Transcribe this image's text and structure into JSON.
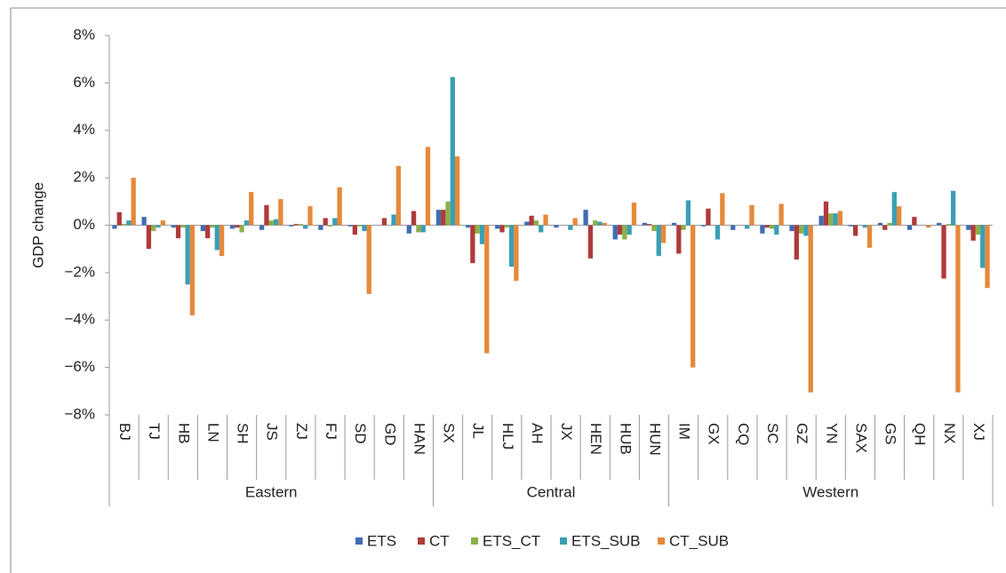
{
  "chart_data": {
    "type": "bar",
    "ylabel": "GDP change",
    "groups": [
      {
        "name": "Eastern",
        "categories": [
          "BJ",
          "TJ",
          "HB",
          "LN",
          "SH",
          "JS",
          "ZJ",
          "FJ",
          "SD",
          "GD",
          "HAN"
        ]
      },
      {
        "name": "Central",
        "categories": [
          "SX",
          "JL",
          "HLJ",
          "AH",
          "JX",
          "HEN",
          "HUB",
          "HUN"
        ]
      },
      {
        "name": "Western",
        "categories": [
          "IM",
          "GX",
          "CQ",
          "SC",
          "GZ",
          "YN",
          "SAX",
          "GS",
          "QH",
          "NX",
          "XJ"
        ]
      }
    ],
    "series": [
      {
        "name": "ETS",
        "color": "#3f6db4",
        "values": [
          -0.15,
          0.35,
          -0.1,
          -0.25,
          -0.15,
          -0.2,
          -0.05,
          -0.2,
          -0.05,
          0.0,
          -0.35,
          0.65,
          -0.1,
          -0.15,
          0.15,
          -0.1,
          0.65,
          -0.6,
          0.1,
          0.1,
          -0.05,
          -0.2,
          -0.35,
          -0.25,
          0.4,
          -0.05,
          0.1,
          -0.2,
          0.1,
          -0.2
        ]
      },
      {
        "name": "CT",
        "color": "#b03a3a",
        "values": [
          0.55,
          -1.0,
          -0.55,
          -0.55,
          -0.1,
          0.85,
          0.05,
          0.3,
          -0.4,
          0.3,
          0.6,
          0.65,
          -1.6,
          -0.3,
          0.4,
          0.0,
          -1.4,
          -0.4,
          0.05,
          -1.2,
          0.7,
          0.0,
          -0.1,
          -1.45,
          1.0,
          -0.45,
          -0.2,
          0.35,
          -2.25,
          -0.65
        ]
      },
      {
        "name": "ETS_CT",
        "color": "#8db04a",
        "values": [
          0.05,
          -0.25,
          -0.1,
          -0.1,
          -0.3,
          0.2,
          0.05,
          -0.05,
          -0.05,
          0.0,
          -0.3,
          1.0,
          -0.35,
          -0.1,
          0.2,
          0.0,
          0.2,
          -0.6,
          -0.25,
          -0.2,
          0.0,
          0.0,
          -0.15,
          -0.35,
          0.5,
          0.0,
          0.1,
          0.0,
          0.05,
          -0.4
        ]
      },
      {
        "name": "ETS_SUB",
        "color": "#3a9fb5",
        "values": [
          0.2,
          -0.1,
          -2.5,
          -1.05,
          0.2,
          0.25,
          -0.15,
          0.3,
          -0.25,
          0.45,
          -0.3,
          6.25,
          -0.8,
          -1.75,
          -0.3,
          -0.2,
          0.15,
          -0.4,
          -1.3,
          1.05,
          -0.6,
          -0.15,
          -0.4,
          -0.45,
          0.5,
          -0.1,
          1.4,
          0.0,
          1.45,
          -1.8
        ]
      },
      {
        "name": "CT_SUB",
        "color": "#e6893b",
        "values": [
          2.0,
          0.2,
          -3.8,
          -1.3,
          1.4,
          1.1,
          0.8,
          1.6,
          -2.9,
          2.5,
          3.3,
          2.9,
          -5.4,
          -2.35,
          0.45,
          0.3,
          0.1,
          0.95,
          -0.75,
          -6.0,
          1.35,
          0.85,
          0.9,
          -7.05,
          0.6,
          -0.95,
          0.8,
          -0.1,
          -7.05,
          -2.65
        ]
      }
    ],
    "ylim": [
      -8,
      8
    ],
    "yticks": [
      {
        "value": -8,
        "label": "−8%"
      },
      {
        "value": -6,
        "label": "−6%"
      },
      {
        "value": -4,
        "label": "−4%"
      },
      {
        "value": -2,
        "label": "−2%"
      },
      {
        "value": 0,
        "label": "0%"
      },
      {
        "value": 2,
        "label": "2%"
      },
      {
        "value": 4,
        "label": "4%"
      },
      {
        "value": 6,
        "label": "6%"
      },
      {
        "value": 8,
        "label": "8%"
      }
    ],
    "grid": false,
    "legend": "bottom"
  }
}
